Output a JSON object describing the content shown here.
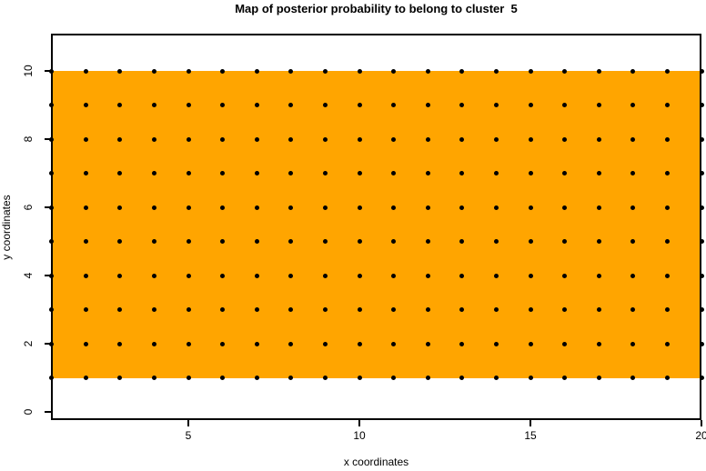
{
  "chart_data": {
    "type": "scatter",
    "title": "Map of posterior probability to belong to cluster  5",
    "xlabel": "x coordinates",
    "ylabel": "y coordinates",
    "xlim": [
      1,
      20
    ],
    "ylim": [
      0,
      10
    ],
    "x_ticks": [
      5,
      10,
      15,
      20
    ],
    "y_ticks": [
      0,
      2,
      4,
      6,
      8,
      10
    ],
    "x_tick_labels": [
      "5",
      "10",
      "15",
      "20"
    ],
    "y_tick_labels": [
      "0",
      "2",
      "4",
      "6",
      "8",
      "10"
    ],
    "points": {
      "x_from": 1,
      "x_to": 20,
      "x_step": 1,
      "y_from": 1,
      "y_to": 10,
      "y_step": 1,
      "shape": "filled-circle",
      "color": "#000000"
    },
    "regions": [
      {
        "x_from": 1,
        "x_to": 20,
        "y_from": 1,
        "y_to": 10,
        "fill": "#FFA500"
      }
    ],
    "colors": {
      "background": "#FFFFFF",
      "axis": "#000000",
      "cluster_fill": "#FFA500",
      "point": "#000000"
    },
    "grid": false,
    "legend": false
  }
}
